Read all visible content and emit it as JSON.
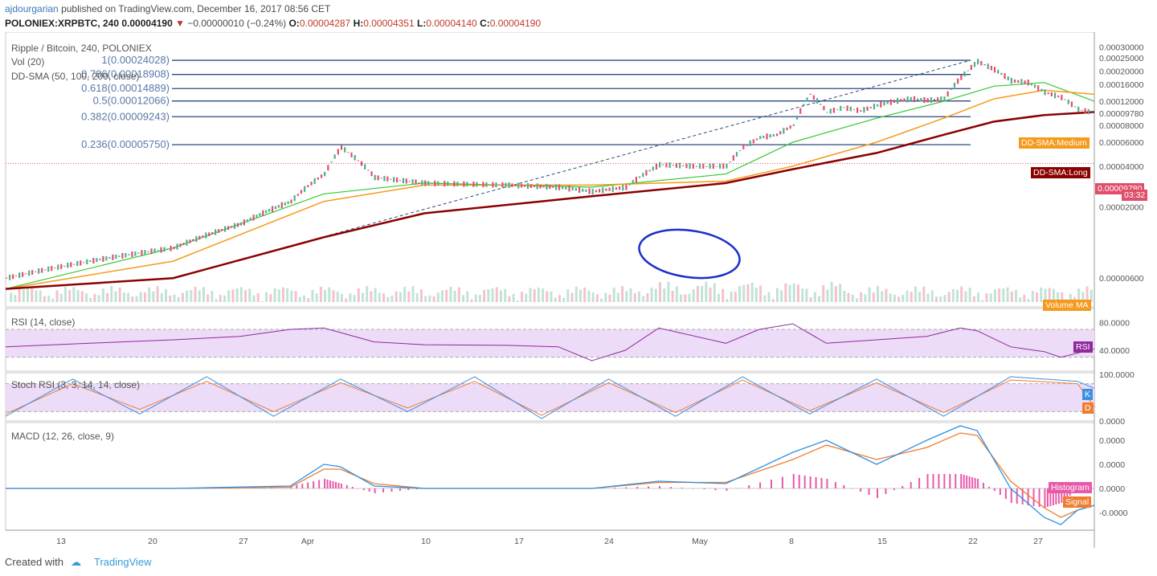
{
  "header": {
    "author": "ajdourgarian",
    "published_text": "published on TradingView.com, December 16, 2017 08:56 CET",
    "symbol_line": "POLONIEX:XRPBTC, 240",
    "price": "0.00004190",
    "change": "−0.00000010 (−0.24%)",
    "ohlc": [
      {
        "label": "O:",
        "value": "0.00004287"
      },
      {
        "label": "H:",
        "value": "0.00004351"
      },
      {
        "label": "L:",
        "value": "0.00004140"
      },
      {
        "label": "C:",
        "value": "0.00004190"
      }
    ]
  },
  "panes": {
    "main_title": "Ripple / Bitcoin, 240, POLONIEX",
    "vol_label": "Vol (20)",
    "sma_label": "DD-SMA (50, 100, 200, close)",
    "rsi_label": "RSI (14, close)",
    "stoch_label": "Stoch RSI (3, 3, 14, 14, close)",
    "macd_label": "MACD (12, 26, close, 9)"
  },
  "tags": {
    "medium": "DD-SMA:Medium",
    "long": "DD-SMA:Long",
    "price": "0.00009780",
    "countdown": "03:32",
    "volume_ma": "Volume MA",
    "rsi": "RSI",
    "k": "K",
    "d": "D",
    "histogram": "Histogram",
    "signal": "Signal"
  },
  "footer": {
    "created_with": "Created with",
    "brand": "TradingView"
  },
  "colors": {
    "fib": "#2b4a7e",
    "sma_short": "#34c734",
    "sma_medium": "#f59a1c",
    "sma_long": "#8b0000",
    "up": "#4caf8a",
    "down": "#e04f6a",
    "rsi": "#8e2a9e",
    "rsi_band": "#ecdcf7",
    "stoch_k": "#3d8fe0",
    "stoch_d": "#f07c30",
    "macd": "#2e8fe5",
    "signal": "#f07c30",
    "histogram": "#e75aa8",
    "circle": "#1a2fc9"
  },
  "chart_data": [
    {
      "type": "line",
      "title": "Ripple / Bitcoin, 240, POLONIEX",
      "y_axis_ticks": [
        "0.00030000",
        "0.00025000",
        "0.00020000",
        "0.00016000",
        "0.00012000",
        "0.00009780",
        "0.00008000",
        "0.00006000",
        "0.00004000",
        "0.00002000",
        "0.00000600"
      ],
      "x_axis_ticks": [
        "13",
        "20",
        "27",
        "Apr",
        "10",
        "17",
        "24",
        "May",
        "8",
        "15",
        "22",
        "27"
      ],
      "fibonacci_levels": [
        {
          "label": "1(0.00024028)",
          "value": 0.00024028
        },
        {
          "label": "0.786(0.00018908)",
          "value": 0.00018908
        },
        {
          "label": "0.618(0.00014889)",
          "value": 0.00014889
        },
        {
          "label": "0.5(0.00012066)",
          "value": 0.00012066
        },
        {
          "label": "0.382(0.00009243)",
          "value": 9.243e-05
        },
        {
          "label": "0.236(0.00005750)",
          "value": 5.75e-05
        }
      ],
      "last_price": 9.78e-05,
      "series": [
        {
          "name": "Price",
          "x": [
            0,
            10,
            20,
            28,
            34,
            38,
            40,
            44,
            50,
            60,
            66,
            70,
            74,
            78,
            82,
            86,
            88,
            90,
            92,
            94,
            96,
            98,
            100,
            102,
            104,
            106,
            108,
            110,
            112,
            114,
            116,
            118,
            120,
            122,
            124,
            126,
            128,
            130
          ],
          "values": [
            6e-06,
            8e-06,
            1e-05,
            1.5e-05,
            2.2e-05,
            3.5e-05,
            5.5e-05,
            3.3e-05,
            3e-05,
            2.9e-05,
            2.8e-05,
            2.6e-05,
            2.8e-05,
            4.1e-05,
            4e-05,
            4e-05,
            5.5e-05,
            6.5e-05,
            6.8e-05,
            8e-05,
            0.000135,
            0.0001,
            0.000108,
            0.000102,
            0.000112,
            0.00012,
            0.000125,
            0.000122,
            0.000125,
            0.00018,
            0.000235,
            0.000205,
            0.00017,
            0.000165,
            0.00014,
            0.000128,
            0.000105,
            9.8e-05
          ]
        },
        {
          "name": "DD-SMA:Short",
          "x": [
            0,
            20,
            38,
            50,
            70,
            86,
            94,
            104,
            112,
            118,
            124,
            130
          ],
          "values": [
            5e-06,
            1e-05,
            2.5e-05,
            3e-05,
            2.8e-05,
            3.5e-05,
            6e-05,
            9e-05,
            0.00012,
            0.000155,
            0.000165,
            0.00012
          ]
        },
        {
          "name": "DD-SMA:Medium",
          "x": [
            0,
            20,
            38,
            50,
            70,
            86,
            94,
            104,
            112,
            118,
            124,
            130
          ],
          "values": [
            5e-06,
            8e-06,
            2.2e-05,
            2.9e-05,
            2.9e-05,
            3.1e-05,
            4e-05,
            6e-05,
            9e-05,
            0.000125,
            0.000145,
            0.000135
          ]
        },
        {
          "name": "DD-SMA:Long",
          "x": [
            0,
            20,
            38,
            50,
            70,
            86,
            94,
            104,
            112,
            118,
            124,
            130
          ],
          "values": [
            5e-06,
            6e-06,
            1.2e-05,
            1.8e-05,
            2.4e-05,
            3e-05,
            3.8e-05,
            5e-05,
            6.8e-05,
            8.5e-05,
            9.5e-05,
            0.0001
          ]
        }
      ]
    },
    {
      "type": "line",
      "title": "RSI (14, close)",
      "y_axis_ticks": [
        "80.0000",
        "40.0000"
      ],
      "band": [
        30,
        70
      ],
      "series": [
        {
          "name": "RSI",
          "x": [
            0,
            10,
            20,
            28,
            34,
            38,
            44,
            50,
            60,
            66,
            70,
            74,
            78,
            86,
            90,
            94,
            98,
            104,
            110,
            114,
            116,
            120,
            124,
            126,
            130
          ],
          "values": [
            45,
            50,
            55,
            60,
            70,
            72,
            52,
            48,
            47,
            45,
            25,
            40,
            72,
            50,
            70,
            78,
            50,
            55,
            60,
            72,
            68,
            45,
            38,
            30,
            42
          ]
        }
      ]
    },
    {
      "type": "line",
      "title": "Stoch RSI (3, 3, 14, 14, close)",
      "y_axis_ticks": [
        "100.0000",
        "0.0000"
      ],
      "band": [
        20,
        80
      ],
      "series": [
        {
          "name": "K",
          "x": [
            0,
            8,
            16,
            24,
            32,
            40,
            48,
            56,
            64,
            72,
            80,
            88,
            96,
            104,
            112,
            120,
            128,
            130
          ],
          "values": [
            10,
            90,
            15,
            95,
            10,
            90,
            20,
            95,
            5,
            90,
            10,
            95,
            15,
            90,
            10,
            95,
            85,
            70
          ]
        },
        {
          "name": "D",
          "x": [
            0,
            8,
            16,
            24,
            32,
            40,
            48,
            56,
            64,
            72,
            80,
            88,
            96,
            104,
            112,
            120,
            128,
            130
          ],
          "values": [
            15,
            80,
            25,
            85,
            20,
            82,
            28,
            85,
            12,
            82,
            18,
            88,
            22,
            82,
            18,
            88,
            80,
            30
          ]
        }
      ]
    },
    {
      "type": "line",
      "title": "MACD (12, 26, close, 9)",
      "y_axis_ticks": [
        "0.0000",
        "0.0000",
        "0.0000",
        "-0.0000"
      ],
      "series": [
        {
          "name": "MACD",
          "x": [
            0,
            20,
            34,
            38,
            40,
            44,
            50,
            70,
            78,
            86,
            94,
            98,
            104,
            110,
            114,
            116,
            120,
            124,
            126,
            128,
            130
          ],
          "values": [
            0,
            0,
            0.1,
            1.0,
            0.9,
            0.1,
            0,
            0,
            0.3,
            0.2,
            1.5,
            2.0,
            1.0,
            2.0,
            2.6,
            2.4,
            0,
            -1.2,
            -1.5,
            -0.9,
            -0.7
          ]
        },
        {
          "name": "Signal",
          "x": [
            0,
            20,
            34,
            38,
            40,
            44,
            50,
            70,
            78,
            86,
            94,
            98,
            104,
            110,
            114,
            116,
            120,
            124,
            126,
            128,
            130
          ],
          "values": [
            0,
            0,
            0.05,
            0.8,
            0.8,
            0.2,
            0,
            0,
            0.25,
            0.25,
            1.2,
            1.8,
            1.2,
            1.7,
            2.3,
            2.2,
            0.3,
            -0.8,
            -1.2,
            -0.9,
            -0.7
          ]
        }
      ]
    }
  ]
}
